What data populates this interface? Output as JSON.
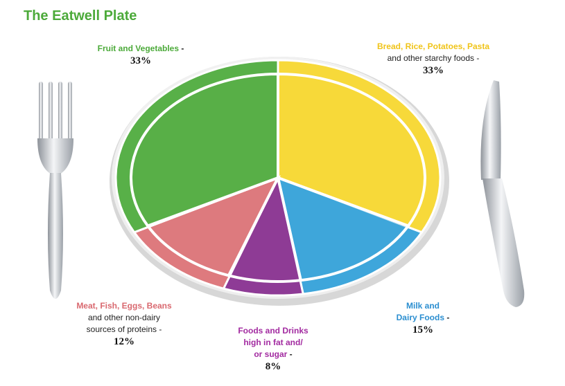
{
  "title": "The Eatwell Plate",
  "chart_data": {
    "type": "pie",
    "title": "The Eatwell Plate",
    "slices": [
      {
        "key": "bread",
        "label": "Bread, Rice, Potatoes, Pasta",
        "sublabel": "and other starchy foods",
        "value": 33,
        "value_label": "33%",
        "color": "#f7d93a",
        "label_color": "#f0c419"
      },
      {
        "key": "milk",
        "label": "Milk and Dairy Foods",
        "sublabel": "",
        "value": 15,
        "value_label": "15%",
        "color": "#3ea6db",
        "label_color": "#2b8ed0"
      },
      {
        "key": "fat",
        "label": "Foods and Drinks high in fat and/ or sugar",
        "sublabel": "",
        "value": 8,
        "value_label": "8%",
        "color": "#8e3b96",
        "label_color": "#a22aa0"
      },
      {
        "key": "meat",
        "label": "Meat, Fish, Eggs, Beans",
        "sublabel": "and other non-dairy sources of proteins",
        "value": 12,
        "value_label": "12%",
        "color": "#de7a7e",
        "label_color": "#d9686f"
      },
      {
        "key": "fruit",
        "label": "Fruit and Vegetables",
        "sublabel": "",
        "value": 33,
        "value_label": "33%",
        "color": "#58b048",
        "label_color": "#4caa3a"
      }
    ],
    "legend": "labels around plate"
  },
  "labels": {
    "fruit": {
      "name": "Fruit and Vegetables",
      "suffix": " -",
      "pct": "33%"
    },
    "bread": {
      "name": "Bread, Rice, Potatoes, Pasta",
      "sub": "and other starchy foods -",
      "pct": "33%"
    },
    "meat": {
      "name": "Meat, Fish, Eggs, Beans",
      "sub1": "and other non-dairy",
      "sub2": "sources of proteins -",
      "pct": "12%"
    },
    "fat": {
      "line1": "Foods and Drinks",
      "line2": "high in fat and/",
      "line3": "or sugar",
      "suffix": " -",
      "pct": "8%"
    },
    "milk": {
      "line1": "Milk and",
      "line2": "Dairy Foods",
      "suffix": " -",
      "pct": "15%"
    }
  },
  "colors": {
    "title": "#4caa3a",
    "fork_knife": "#b8bcc2"
  }
}
